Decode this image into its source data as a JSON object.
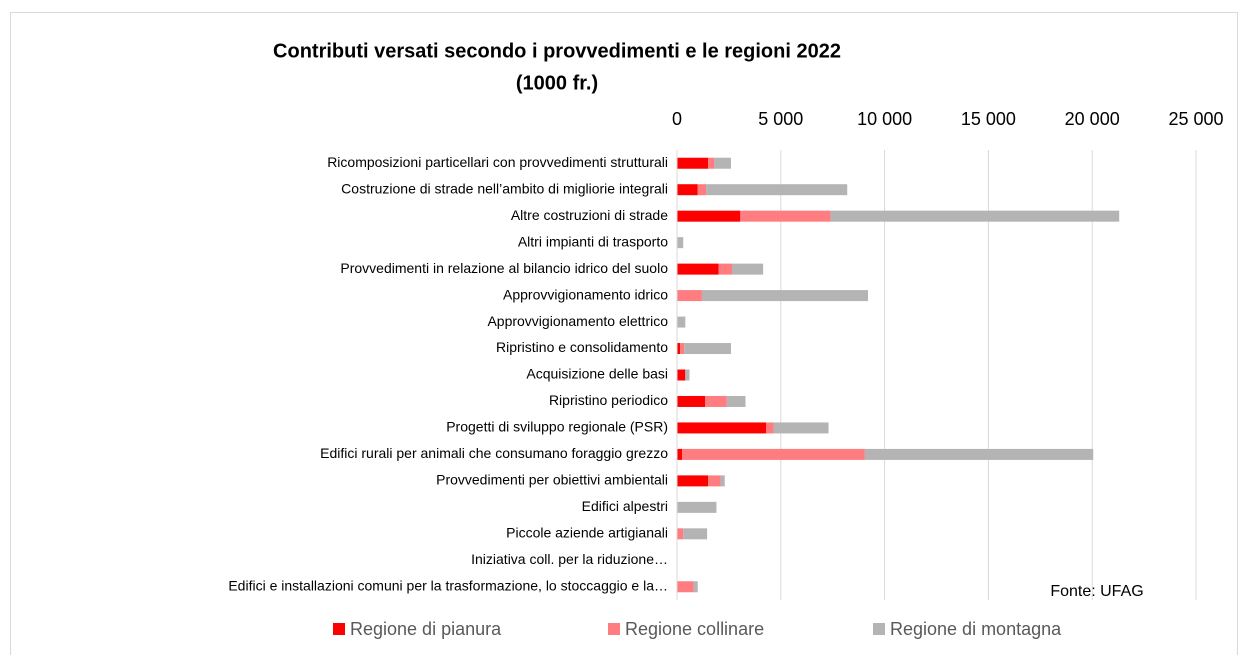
{
  "chart_data": {
    "type": "stacked-bar-horizontal",
    "title": "Contributi versati secondo i provvedimenti e le regioni 2022",
    "subtitle": "(1000 fr.)",
    "annotation": "Fonte: UFAG",
    "categories": [
      "Ricomposizioni particellari con provvedimenti strutturali",
      "Costruzione di strade nell’ambito di migliorie integrali",
      "Altre costruzioni di strade",
      "Altri impianti di trasporto",
      "Provvedimenti in relazione al bilancio idrico del suolo",
      "Approvvigionamento idrico",
      "Approvvigionamento elettrico",
      "Ripristino e consolidamento",
      "Acquisizione delle basi",
      "Ripristino periodico",
      "Progetti di sviluppo regionale (PSR)",
      "Edifici rurali per animali che consumano foraggio grezzo",
      "Provvedimenti per obiettivi ambientali",
      "Edifici alpestri",
      "Piccole aziende artigianali",
      "Iniziativa coll. per la riduzione…",
      "Edifici e installazioni comuni per la trasformazione, lo stoccaggio e la…"
    ],
    "series": [
      {
        "name": "Regione di pianura",
        "color": "#ff0000",
        "values": [
          1500,
          1000,
          3050,
          0,
          2000,
          0,
          0,
          150,
          400,
          1350,
          4300,
          250,
          1500,
          0,
          0,
          0,
          0
        ]
      },
      {
        "name": "Regione collinare",
        "color": "#ff7c80",
        "values": [
          300,
          400,
          4350,
          0,
          650,
          1200,
          0,
          200,
          0,
          1050,
          350,
          8800,
          600,
          0,
          300,
          0,
          800
        ]
      },
      {
        "name": "Regione di montagna",
        "color": "#b4b4b4",
        "values": [
          800,
          6800,
          13900,
          300,
          1500,
          8000,
          400,
          2250,
          200,
          900,
          2650,
          11000,
          200,
          1900,
          1150,
          0,
          200
        ]
      }
    ],
    "xlim": [
      0,
      25000
    ],
    "xticks": [
      0,
      {
        "value": 5000,
        "label": "5 000"
      },
      {
        "value": 10000,
        "label": "10 000"
      },
      {
        "value": 15000,
        "label": "15 000"
      },
      {
        "value": 20000,
        "label": "20 000"
      },
      {
        "value": 25000,
        "label": "25 000"
      }
    ],
    "grid": true,
    "legend": "bottom"
  }
}
